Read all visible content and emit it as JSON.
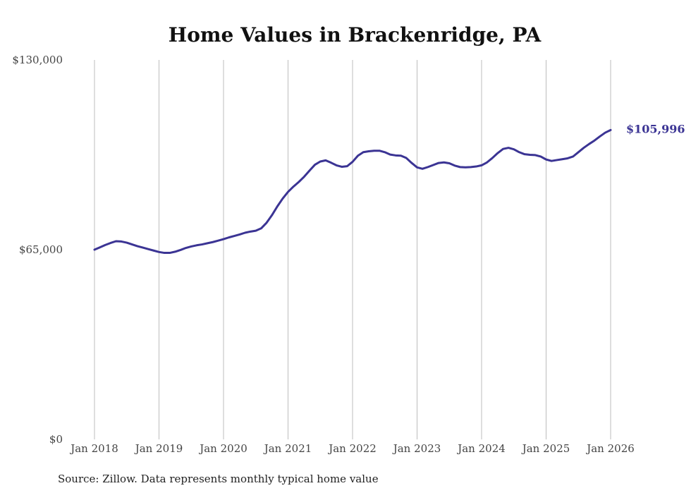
{
  "chart_data": {
    "type": "line",
    "title": "Home Values in Brackenridge, PA",
    "xlabel": "",
    "ylabel": "",
    "ylim": [
      0,
      130000
    ],
    "y_ticks": [
      {
        "value": 0,
        "label": "$0"
      },
      {
        "value": 65000,
        "label": "$65,000"
      },
      {
        "value": 130000,
        "label": "$130,000"
      }
    ],
    "x_ticks": [
      {
        "value": "2018-01",
        "label": "Jan 2018"
      },
      {
        "value": "2019-01",
        "label": "Jan 2019"
      },
      {
        "value": "2020-01",
        "label": "Jan 2020"
      },
      {
        "value": "2021-01",
        "label": "Jan 2021"
      },
      {
        "value": "2022-01",
        "label": "Jan 2022"
      },
      {
        "value": "2023-01",
        "label": "Jan 2023"
      },
      {
        "value": "2024-01",
        "label": "Jan 2024"
      },
      {
        "value": "2025-01",
        "label": "Jan 2025"
      },
      {
        "value": "2026-01",
        "label": "Jan 2026"
      }
    ],
    "grid": "vertical",
    "line_color": "#3b3494",
    "end_label": "$105,996",
    "series": [
      {
        "points": [
          [
            "2018-01",
            65000
          ],
          [
            "2018-02",
            65800
          ],
          [
            "2018-03",
            66600
          ],
          [
            "2018-04",
            67300
          ],
          [
            "2018-05",
            67900
          ],
          [
            "2018-06",
            67800
          ],
          [
            "2018-07",
            67400
          ],
          [
            "2018-08",
            66800
          ],
          [
            "2018-09",
            66200
          ],
          [
            "2018-10",
            65700
          ],
          [
            "2018-11",
            65200
          ],
          [
            "2018-12",
            64700
          ],
          [
            "2019-01",
            64200
          ],
          [
            "2019-02",
            63900
          ],
          [
            "2019-03",
            63900
          ],
          [
            "2019-04",
            64300
          ],
          [
            "2019-05",
            64900
          ],
          [
            "2019-06",
            65600
          ],
          [
            "2019-07",
            66100
          ],
          [
            "2019-08",
            66500
          ],
          [
            "2019-09",
            66800
          ],
          [
            "2019-10",
            67200
          ],
          [
            "2019-11",
            67600
          ],
          [
            "2019-12",
            68100
          ],
          [
            "2020-01",
            68600
          ],
          [
            "2020-02",
            69200
          ],
          [
            "2020-03",
            69700
          ],
          [
            "2020-04",
            70200
          ],
          [
            "2020-05",
            70800
          ],
          [
            "2020-06",
            71200
          ],
          [
            "2020-07",
            71500
          ],
          [
            "2020-08",
            72300
          ],
          [
            "2020-09",
            74200
          ],
          [
            "2020-10",
            76800
          ],
          [
            "2020-11",
            79800
          ],
          [
            "2020-12",
            82500
          ],
          [
            "2021-01",
            84800
          ],
          [
            "2021-02",
            86600
          ],
          [
            "2021-03",
            88200
          ],
          [
            "2021-04",
            90000
          ],
          [
            "2021-05",
            92100
          ],
          [
            "2021-06",
            94100
          ],
          [
            "2021-07",
            95200
          ],
          [
            "2021-08",
            95600
          ],
          [
            "2021-09",
            94800
          ],
          [
            "2021-10",
            93900
          ],
          [
            "2021-11",
            93400
          ],
          [
            "2021-12",
            93600
          ],
          [
            "2022-01",
            95100
          ],
          [
            "2022-02",
            97200
          ],
          [
            "2022-03",
            98400
          ],
          [
            "2022-04",
            98700
          ],
          [
            "2022-05",
            98900
          ],
          [
            "2022-06",
            98900
          ],
          [
            "2022-07",
            98400
          ],
          [
            "2022-08",
            97600
          ],
          [
            "2022-09",
            97300
          ],
          [
            "2022-10",
            97200
          ],
          [
            "2022-11",
            96400
          ],
          [
            "2022-12",
            94700
          ],
          [
            "2023-01",
            93200
          ],
          [
            "2023-02",
            92700
          ],
          [
            "2023-03",
            93300
          ],
          [
            "2023-04",
            94000
          ],
          [
            "2023-05",
            94700
          ],
          [
            "2023-06",
            94900
          ],
          [
            "2023-07",
            94600
          ],
          [
            "2023-08",
            93800
          ],
          [
            "2023-09",
            93300
          ],
          [
            "2023-10",
            93200
          ],
          [
            "2023-11",
            93300
          ],
          [
            "2023-12",
            93500
          ],
          [
            "2024-01",
            93900
          ],
          [
            "2024-02",
            94900
          ],
          [
            "2024-03",
            96400
          ],
          [
            "2024-04",
            98100
          ],
          [
            "2024-05",
            99500
          ],
          [
            "2024-06",
            99900
          ],
          [
            "2024-07",
            99400
          ],
          [
            "2024-08",
            98400
          ],
          [
            "2024-09",
            97700
          ],
          [
            "2024-10",
            97500
          ],
          [
            "2024-11",
            97400
          ],
          [
            "2024-12",
            96900
          ],
          [
            "2025-01",
            95900
          ],
          [
            "2025-02",
            95400
          ],
          [
            "2025-03",
            95700
          ],
          [
            "2025-04",
            96000
          ],
          [
            "2025-05",
            96300
          ],
          [
            "2025-06",
            96900
          ],
          [
            "2025-07",
            98400
          ],
          [
            "2025-08",
            99900
          ],
          [
            "2025-09",
            101200
          ],
          [
            "2025-10",
            102400
          ],
          [
            "2025-11",
            103800
          ],
          [
            "2025-12",
            105100
          ],
          [
            "2026-01",
            105996
          ]
        ]
      }
    ]
  },
  "footer": {
    "source": "Source: Zillow. Data represents monthly typical home value"
  }
}
